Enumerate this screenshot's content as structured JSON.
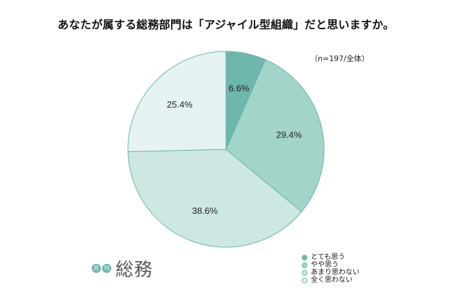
{
  "title": "あなたが属する総務部門は「アジャイル型組織」だと思いますか。",
  "note": "（n=197/全体）",
  "logo": {
    "badge1": "月",
    "badge2": "刊",
    "text": "総務"
  },
  "chart_data": {
    "type": "pie",
    "start_angle": "12 o'clock",
    "direction": "clockwise",
    "slices": [
      {
        "label": "とても思う",
        "value": 6.6,
        "display": "6.6%",
        "color": "#6fb7ac"
      },
      {
        "label": "やや思う",
        "value": 29.4,
        "display": "29.4%",
        "color": "#a2d4ca"
      },
      {
        "label": "あまり思わない",
        "value": 38.6,
        "display": "38.6%",
        "color": "#cde7e3"
      },
      {
        "label": "全く思わない",
        "value": 25.4,
        "display": "25.4%",
        "color": "#e6f3f2"
      }
    ],
    "legend_position": "bottom-right",
    "slice_border": "#6bb3a8"
  }
}
